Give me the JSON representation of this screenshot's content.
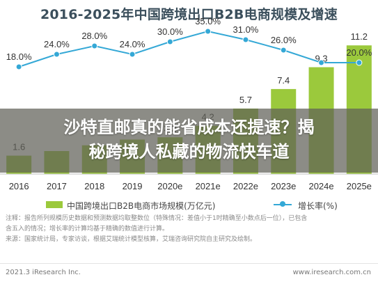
{
  "chart_data": {
    "type": "bar",
    "title": "2016-2025年中国跨境出口B2B电商规模及增速",
    "categories": [
      "2016",
      "2017",
      "2018",
      "2019",
      "2020e",
      "2021e",
      "2022e",
      "2023e",
      "2024e",
      "2025e"
    ],
    "series": [
      {
        "name": "中国跨境出口B2B电商市场规模(万亿元)",
        "type": "bar",
        "values": [
          1.6,
          2.0,
          2.5,
          3.0,
          3.2,
          4.2,
          5.7,
          7.4,
          9.3,
          11.2
        ],
        "labels": [
          "1.6",
          "",
          "",
          "",
          "3.2",
          "4.2",
          "5.7",
          "7.4",
          "9.3",
          "11.2"
        ],
        "color": "#9bc93c"
      },
      {
        "name": "增长率(%)",
        "type": "line",
        "values": [
          18.0,
          24.0,
          28.0,
          24.0,
          30.0,
          35.0,
          31.0,
          26.0,
          20.0,
          20.0
        ],
        "labels": [
          "18.0%",
          "24.0%",
          "28.0%",
          "24.0%",
          "30.0%",
          "35.0%",
          "31.0%",
          "26.0%",
          "",
          "20.0%"
        ],
        "color": "#34a8d6"
      }
    ],
    "bar_ylim": [
      0,
      12
    ],
    "line_ylim": [
      0,
      40
    ],
    "legend_position": "bottom",
    "grid": false
  },
  "overlay": {
    "headline_line1": "沙特直邮真的能省成本还提速？揭",
    "headline_line2": "秘跨境人私藏的物流快车道"
  },
  "notes": [
    "注释：报告所列规模历史数据和预测数据均取整数位（特殊情况：差值小于1时精确至小数点后一位），已包含",
    "含五入的情况；增长率的计算均基于精确的数值进行计算。",
    "来源：国家统计局，专家访谈，根据艾瑞统计模型核算，艾瑞咨询研究院自主研究及绘制。"
  ],
  "footer": {
    "left": "2021.3 iResearch Inc.",
    "right": "www.iresearch.com.cn"
  }
}
